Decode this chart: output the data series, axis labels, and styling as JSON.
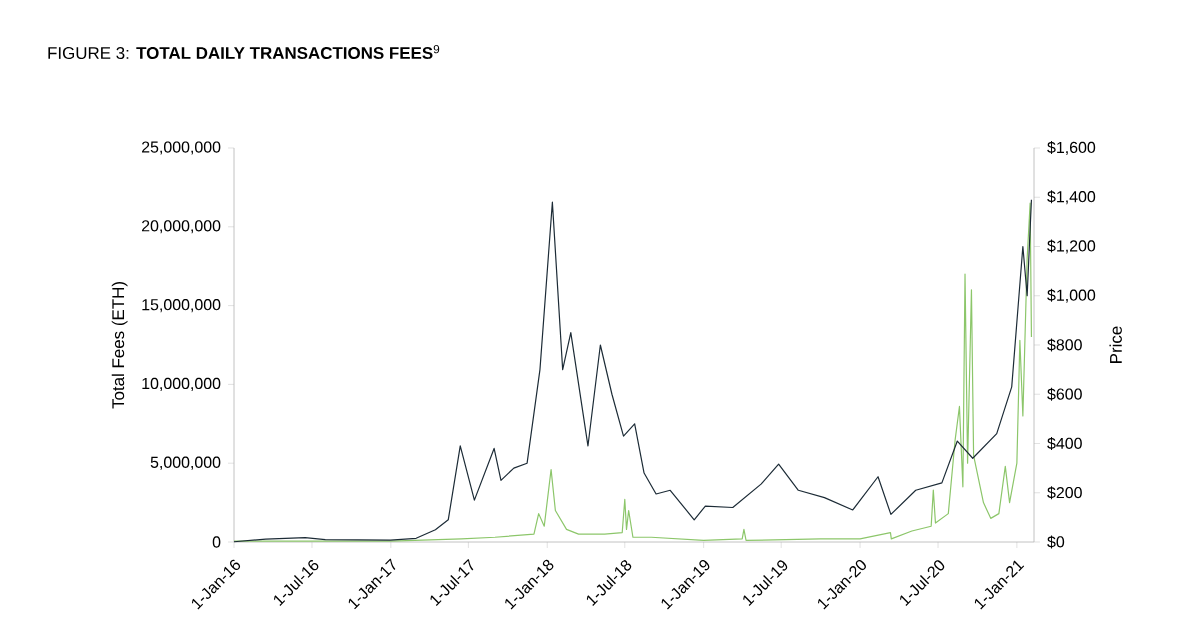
{
  "chart_data": {
    "type": "line",
    "title": "FIGURE 3: **TOTAL DAILY TRANSACTIONS FEES**$^{9}$",
    "ylabel": "Total Fees (ETH)",
    "y2label": "Price",
    "xlim": [
      "2016-01-01",
      "2021-02-10"
    ],
    "xticks": [
      {
        "value": "2016-01-01",
        "label": "1-Jan-16"
      },
      {
        "value": "2016-07-01",
        "label": "1-Jul-16"
      },
      {
        "value": "2017-01-01",
        "label": "1-Jan-17"
      },
      {
        "value": "2017-07-01",
        "label": "1-Jul-17"
      },
      {
        "value": "2018-01-01",
        "label": "1-Jan-18"
      },
      {
        "value": "2018-07-01",
        "label": "1-Jul-18"
      },
      {
        "value": "2019-01-01",
        "label": "1-Jan-19"
      },
      {
        "value": "2019-07-01",
        "label": "1-Jul-19"
      },
      {
        "value": "2020-01-01",
        "label": "1-Jan-20"
      },
      {
        "value": "2020-07-01",
        "label": "1-Jul-20"
      },
      {
        "value": "2021-01-01",
        "label": "1-Jan-21"
      }
    ],
    "ylim": [
      0,
      25000000
    ],
    "yticks": [
      0,
      {
        "value": 5000000,
        "label": "5,000,000"
      },
      {
        "value": 10000000,
        "label": "10,000,000"
      },
      {
        "value": 15000000,
        "label": "15,000,000"
      },
      {
        "value": 20000000,
        "label": "20,000,000"
      },
      {
        "value": 25000000,
        "label": "25,000,000"
      }
    ],
    "y2lim": [
      0,
      1600
    ],
    "y2ticks": [
      {
        "value": 0,
        "label": "$0"
      },
      {
        "value": 200,
        "label": "$200"
      },
      {
        "value": 400,
        "label": "$400"
      },
      {
        "value": 600,
        "label": "$600"
      },
      {
        "value": 800,
        "label": "$800"
      },
      {
        "value": 1000,
        "label": "$1,000"
      },
      {
        "value": 1200,
        "label": "$1,200"
      },
      {
        "value": 1400,
        "label": "$1,400"
      },
      {
        "value": 1600,
        "label": "$1,600"
      }
    ],
    "series": [
      {
        "color": "#1c2b36",
        "axis": "y2",
        "x": [
          "2016-01-01",
          "2016-03-15",
          "2016-06-15",
          "2016-08-01",
          "2016-12-31",
          "2017-03-01",
          "2017-04-15",
          "2017-05-15",
          "2017-06-12",
          "2017-07-15",
          "2017-08-30",
          "2017-09-15",
          "2017-10-15",
          "2017-11-15",
          "2017-12-15",
          "2018-01-13",
          "2018-02-06",
          "2018-02-25",
          "2018-04-06",
          "2018-05-05",
          "2018-06-01",
          "2018-06-28",
          "2018-07-24",
          "2018-08-15",
          "2018-09-12",
          "2018-10-15",
          "2018-12-10",
          "2019-01-05",
          "2019-03-10",
          "2019-05-15",
          "2019-06-25",
          "2019-08-10",
          "2019-10-10",
          "2019-12-15",
          "2020-02-12",
          "2020-03-13",
          "2020-05-10",
          "2020-07-10",
          "2020-08-15",
          "2020-09-20",
          "2020-11-15",
          "2020-12-20",
          "2021-01-15",
          "2021-01-25",
          "2021-02-04"
        ],
        "values": [
          1,
          12,
          18,
          10,
          8,
          15,
          50,
          90,
          390,
          170,
          380,
          250,
          300,
          320,
          700,
          1380,
          700,
          850,
          390,
          800,
          600,
          430,
          480,
          280,
          195,
          210,
          90,
          146,
          140,
          235,
          316,
          210,
          180,
          130,
          265,
          112,
          210,
          240,
          410,
          340,
          440,
          630,
          1200,
          1000,
          1390
        ]
      },
      {
        "color": "#8cc66a",
        "x": [
          "2016-01-01",
          "2017-01-01",
          "2017-06-15",
          "2017-09-01",
          "2017-12-01",
          "2017-12-12",
          "2017-12-25",
          "2018-01-10",
          "2018-01-20",
          "2018-02-15",
          "2018-03-15",
          "2018-05-15",
          "2018-06-25",
          "2018-07-01",
          "2018-07-05",
          "2018-07-10",
          "2018-07-20",
          "2018-09-01",
          "2019-01-01",
          "2019-04-01",
          "2019-04-05",
          "2019-04-10",
          "2019-10-01",
          "2020-01-01",
          "2020-03-12",
          "2020-03-14",
          "2020-05-01",
          "2020-06-15",
          "2020-06-20",
          "2020-06-25",
          "2020-07-25",
          "2020-08-10",
          "2020-08-20",
          "2020-08-28",
          "2020-09-02",
          "2020-09-08",
          "2020-09-17",
          "2020-09-22",
          "2020-10-15",
          "2020-11-01",
          "2020-11-20",
          "2020-12-05",
          "2020-12-15",
          "2021-01-01",
          "2021-01-08",
          "2021-01-15",
          "2021-01-25",
          "2021-02-01",
          "2021-02-04"
        ],
        "values": [
          50000,
          50000,
          200000,
          300000,
          500000,
          1800000,
          1000000,
          4600000,
          2000000,
          800000,
          500000,
          500000,
          600000,
          2700000,
          800000,
          2000000,
          300000,
          300000,
          100000,
          200000,
          800000,
          100000,
          200000,
          200000,
          600000,
          200000,
          700000,
          1000000,
          3300000,
          1200000,
          1800000,
          6500000,
          8600000,
          3500000,
          17000000,
          5000000,
          16000000,
          5500000,
          2500000,
          1500000,
          1800000,
          4800000,
          2500000,
          5000000,
          12800000,
          8000000,
          18000000,
          21500000,
          13000000
        ]
      }
    ]
  }
}
